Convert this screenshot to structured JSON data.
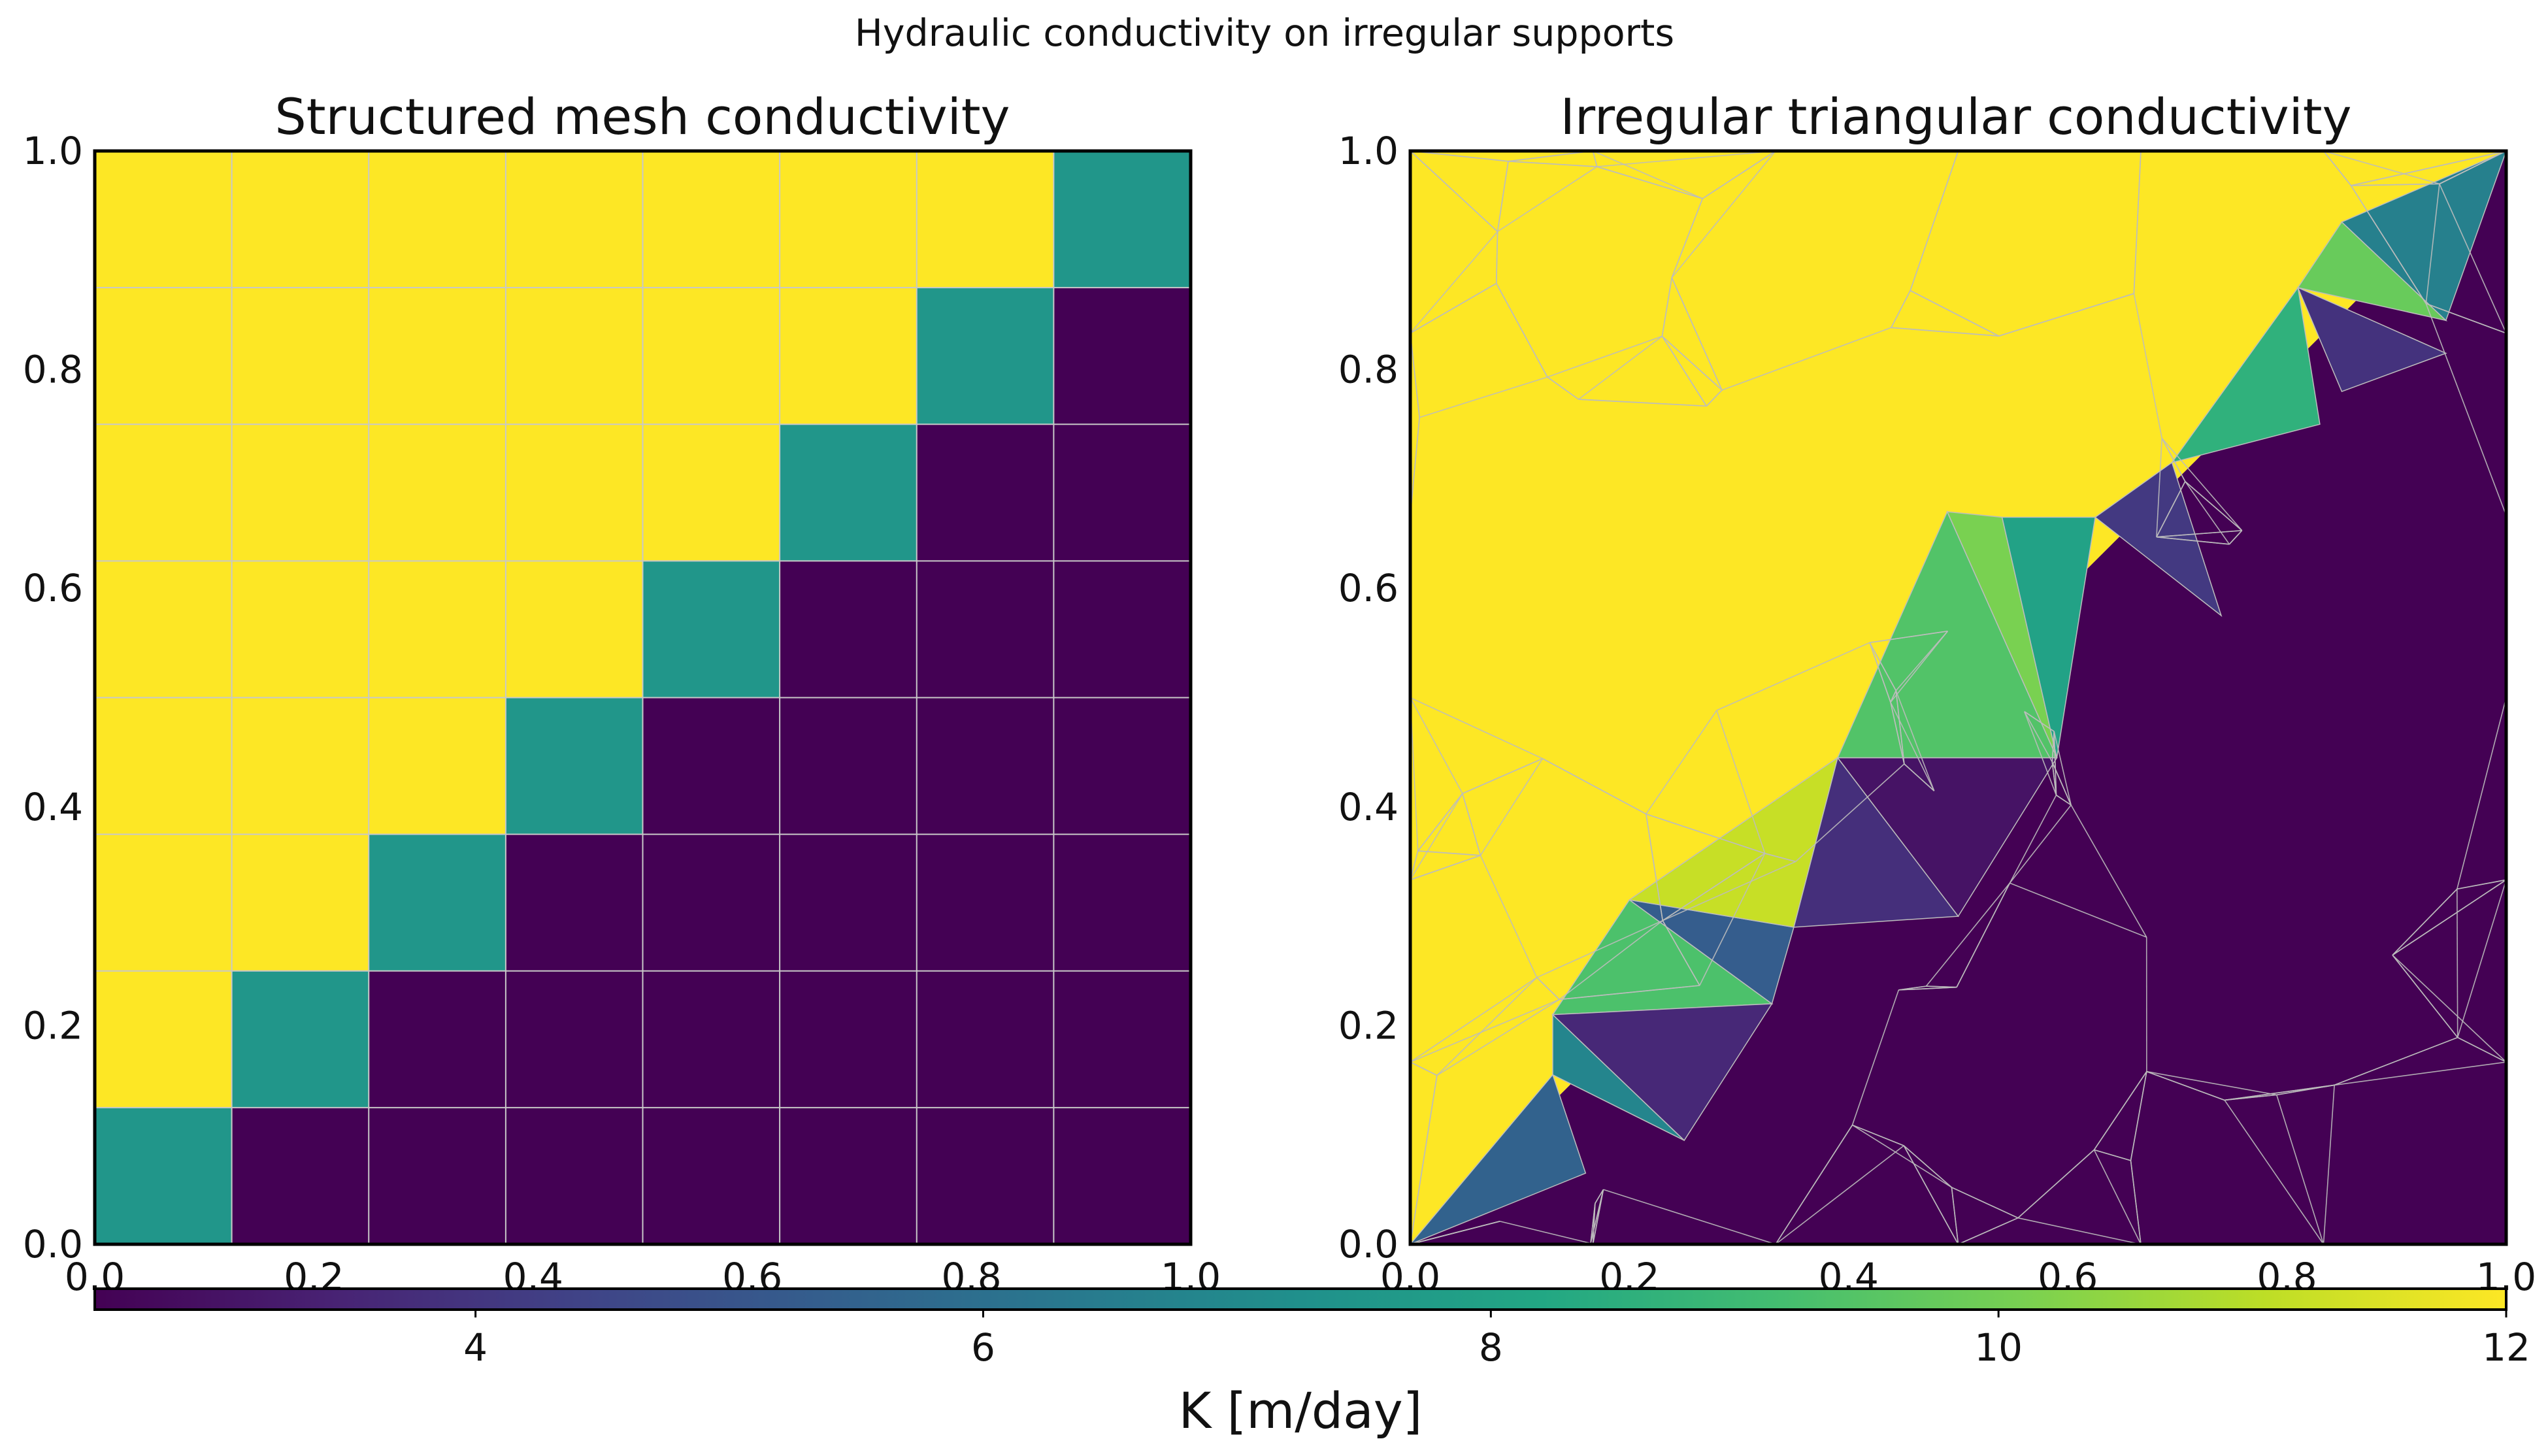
{
  "suptitle": "Hydraulic conductivity on irregular supports",
  "colorbar": {
    "label": "K [m/day]",
    "colormap": "viridis",
    "vmin": 2.5,
    "vmax": 12,
    "ticks": [
      4,
      6,
      8,
      10,
      12
    ],
    "tick_labels": [
      "4",
      "6",
      "8",
      "10",
      "12"
    ]
  },
  "chart_data": [
    {
      "type": "heatmap",
      "title": "Structured mesh conductivity",
      "xlabel": "",
      "ylabel": "",
      "xlim": [
        0,
        1
      ],
      "ylim": [
        0,
        1
      ],
      "xticks": [
        "0.0",
        "0.2",
        "0.4",
        "0.6",
        "0.8",
        "1.0"
      ],
      "yticks": [
        "0.0",
        "0.2",
        "0.4",
        "0.6",
        "0.8",
        "1.0"
      ],
      "grid": true,
      "nx": 8,
      "ny": 8,
      "cell_rule": {
        "above_diagonal": 12,
        "on_diagonal": 7.5,
        "below_diagonal": 2.5
      },
      "values_rows_bottom_to_top": [
        [
          7.5,
          2.5,
          2.5,
          2.5,
          2.5,
          2.5,
          2.5,
          2.5
        ],
        [
          12,
          7.5,
          2.5,
          2.5,
          2.5,
          2.5,
          2.5,
          2.5
        ],
        [
          12,
          12,
          7.5,
          2.5,
          2.5,
          2.5,
          2.5,
          2.5
        ],
        [
          12,
          12,
          12,
          7.5,
          2.5,
          2.5,
          2.5,
          2.5
        ],
        [
          12,
          12,
          12,
          12,
          7.5,
          2.5,
          2.5,
          2.5
        ],
        [
          12,
          12,
          12,
          12,
          12,
          7.5,
          2.5,
          2.5
        ],
        [
          12,
          12,
          12,
          12,
          12,
          12,
          7.5,
          2.5
        ],
        [
          12,
          12,
          12,
          12,
          12,
          12,
          12,
          7.5
        ]
      ]
    },
    {
      "type": "heatmap",
      "title": "Irregular triangular conductivity",
      "xlabel": "",
      "ylabel": "",
      "xlim": [
        0,
        1
      ],
      "ylim": [
        0,
        1
      ],
      "xticks": [
        "0.0",
        "0.2",
        "0.4",
        "0.6",
        "0.8",
        "1.0"
      ],
      "yticks": [
        "0.0",
        "0.2",
        "0.4",
        "0.6",
        "0.8",
        "1.0"
      ],
      "support": "irregular triangulation",
      "region_values": {
        "upper_left_triangle_region": 12,
        "lower_right_triangle_region": 2.5
      },
      "diagonal_band_triangles": [
        {
          "vertices": [
            [
              0.0,
              0.0
            ],
            [
              0.13,
              0.155
            ],
            [
              0.16,
              0.065
            ]
          ],
          "K": 5.5
        },
        {
          "vertices": [
            [
              0.13,
              0.155
            ],
            [
              0.13,
              0.21
            ],
            [
              0.25,
              0.095
            ]
          ],
          "K": 6.8
        },
        {
          "vertices": [
            [
              0.13,
              0.21
            ],
            [
              0.2,
              0.315
            ],
            [
              0.33,
              0.22
            ]
          ],
          "K": 9.3
        },
        {
          "vertices": [
            [
              0.2,
              0.315
            ],
            [
              0.33,
              0.22
            ],
            [
              0.35,
              0.29
            ]
          ],
          "K": 5.3
        },
        {
          "vertices": [
            [
              0.2,
              0.315
            ],
            [
              0.35,
              0.29
            ],
            [
              0.39,
              0.445
            ]
          ],
          "K": 11.2
        },
        {
          "vertices": [
            [
              0.13,
              0.21
            ],
            [
              0.33,
              0.22
            ],
            [
              0.25,
              0.095
            ]
          ],
          "K": 3.6
        },
        {
          "vertices": [
            [
              0.35,
              0.29
            ],
            [
              0.39,
              0.445
            ],
            [
              0.5,
              0.3
            ]
          ],
          "K": 3.8
        },
        {
          "vertices": [
            [
              0.39,
              0.445
            ],
            [
              0.5,
              0.3
            ],
            [
              0.59,
              0.445
            ]
          ],
          "K": 3.0
        },
        {
          "vertices": [
            [
              0.39,
              0.445
            ],
            [
              0.49,
              0.67
            ],
            [
              0.59,
              0.445
            ]
          ],
          "K": 9.4
        },
        {
          "vertices": [
            [
              0.49,
              0.67
            ],
            [
              0.54,
              0.665
            ],
            [
              0.59,
              0.445
            ]
          ],
          "K": 10.1
        },
        {
          "vertices": [
            [
              0.54,
              0.665
            ],
            [
              0.625,
              0.665
            ],
            [
              0.59,
              0.445
            ]
          ],
          "K": 8.0
        },
        {
          "vertices": [
            [
              0.625,
              0.665
            ],
            [
              0.695,
              0.715
            ],
            [
              0.74,
              0.575
            ]
          ],
          "K": 4.1
        },
        {
          "vertices": [
            [
              0.695,
              0.715
            ],
            [
              0.83,
              0.75
            ],
            [
              0.81,
              0.875
            ]
          ],
          "K": 8.6
        },
        {
          "vertices": [
            [
              0.81,
              0.875
            ],
            [
              0.85,
              0.78
            ],
            [
              0.945,
              0.815
            ]
          ],
          "K": 3.9
        },
        {
          "vertices": [
            [
              0.81,
              0.875
            ],
            [
              0.85,
              0.935
            ],
            [
              0.945,
              0.845
            ]
          ],
          "K": 9.8
        },
        {
          "vertices": [
            [
              0.85,
              0.935
            ],
            [
              1.0,
              1.0
            ],
            [
              0.945,
              0.845
            ]
          ],
          "K": 6.6
        }
      ]
    }
  ]
}
